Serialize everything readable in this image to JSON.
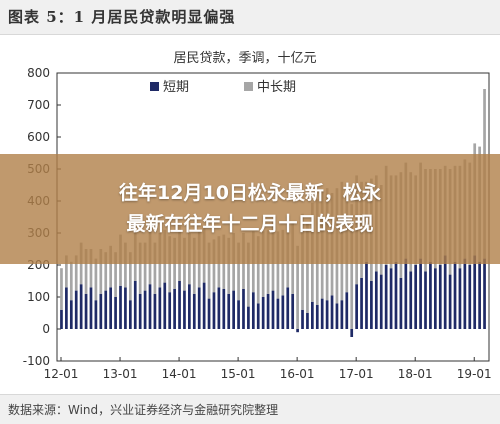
{
  "header": {
    "figure_title": "图表 5：1 月居民贷款明显偏强"
  },
  "overlay": {
    "line1": "往年12月10日松永最新，松永",
    "line2": "最新在往年十二月十日的表现"
  },
  "footer": {
    "source": "数据来源：Wind，兴业证券经济与金融研究院整理"
  },
  "colors": {
    "short_term": "#1f2a66",
    "long_term": "#a6a6a6",
    "header_bg": "#f0f0f0",
    "overlay": "#b08048"
  },
  "chart_data": {
    "type": "bar",
    "stacked": true,
    "title": "居民贷款，季调，十亿元",
    "xlabel": "",
    "ylabel": "",
    "ylim": [
      -100,
      800
    ],
    "yticks": [
      -100,
      0,
      100,
      200,
      300,
      400,
      500,
      600,
      700,
      800
    ],
    "xtick_labels": [
      "12-01",
      "13-01",
      "14-01",
      "15-01",
      "16-01",
      "17-01",
      "18-01",
      "19-01"
    ],
    "legend_position": "top-left",
    "grid": false,
    "series": [
      {
        "name": "短期",
        "values": [
          60,
          130,
          90,
          120,
          140,
          110,
          130,
          90,
          110,
          120,
          130,
          100,
          135,
          130,
          90,
          150,
          110,
          120,
          140,
          110,
          130,
          145,
          115,
          125,
          150,
          120,
          140,
          110,
          130,
          145,
          95,
          115,
          130,
          125,
          110,
          120,
          90,
          125,
          70,
          115,
          80,
          100,
          110,
          120,
          95,
          105,
          130,
          110,
          -10,
          60,
          50,
          85,
          75,
          95,
          90,
          105,
          80,
          90,
          115,
          -25,
          140,
          160,
          210,
          150,
          180,
          170,
          200,
          190,
          210,
          160,
          220,
          180,
          200,
          220,
          180,
          210,
          190,
          200,
          230,
          170,
          210,
          190,
          220,
          200,
          230,
          210,
          220
        ]
      },
      {
        "name": "中长期",
        "values": [
          130,
          100,
          120,
          110,
          130,
          140,
          120,
          130,
          140,
          120,
          130,
          140,
          160,
          140,
          150,
          170,
          160,
          150,
          180,
          160,
          170,
          165,
          175,
          160,
          170,
          165,
          160,
          175,
          180,
          170,
          175,
          165,
          160,
          170,
          175,
          180,
          180,
          175,
          200,
          190,
          210,
          205,
          200,
          215,
          210,
          205,
          200,
          220,
          260,
          300,
          280,
          310,
          330,
          340,
          350,
          320,
          360,
          370,
          330,
          390,
          340,
          300,
          250,
          320,
          300,
          280,
          310,
          290,
          270,
          330,
          300,
          310,
          280,
          300,
          320,
          290,
          310,
          300,
          280,
          330,
          300,
          320,
          310,
          320,
          350,
          360,
          530
        ]
      }
    ]
  }
}
